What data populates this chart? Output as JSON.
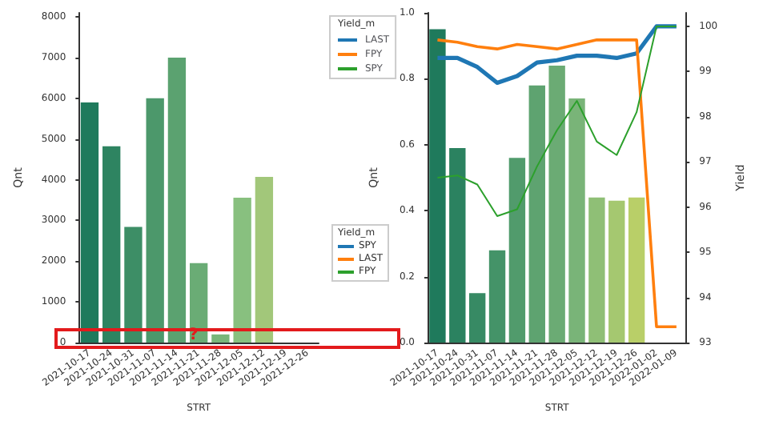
{
  "chart_data": [
    {
      "type": "bar",
      "categories": [
        "2021-10-17",
        "2021-10-24",
        "2021-10-31",
        "2021-11-07",
        "2021-11-14",
        "2021-11-21",
        "2021-11-28",
        "2021-12-05",
        "2021-12-12",
        "2021-12-19",
        "2021-12-26"
      ],
      "values": [
        5900,
        4820,
        2840,
        6000,
        7000,
        1950,
        200,
        3560,
        4070,
        null,
        null
      ],
      "colors": [
        "#1f7a5c",
        "#2e8461",
        "#3d8e66",
        "#4c986b",
        "#5ba270",
        "#6aac75",
        "#79b67a",
        "#88c07f",
        "#a2c77a",
        "#b3cc70",
        "#c0d068"
      ],
      "xlabel": "STRT",
      "ylabel": "Qnt",
      "ylim": [
        0,
        8100
      ],
      "yticks": [
        0,
        1000,
        2000,
        3000,
        4000,
        5000,
        6000,
        7000,
        8000
      ],
      "annotations": [
        "?"
      ]
    },
    {
      "type": "bar",
      "categories": [
        "2021-10-17",
        "2021-10-24",
        "2021-10-31",
        "2021-11-07",
        "2021-11-14",
        "2021-11-21",
        "2021-11-28",
        "2021-12-05",
        "2021-12-12",
        "2021-12-19",
        "2021-12-26",
        "2022-01-02",
        "2022-01-09"
      ],
      "series": [
        {
          "type": "bar",
          "colors": [
            "#1f7a5c",
            "#2b8260",
            "#378a64",
            "#449368",
            "#519b6c",
            "#5ea370",
            "#6bab74",
            "#79b478",
            "#8fbf76",
            "#a5c870",
            "#b9cf68",
            "#c5d462",
            "#d0d95c"
          ],
          "values": [
            0.95,
            0.59,
            0.15,
            0.28,
            0.56,
            0.78,
            0.84,
            0.74,
            0.44,
            0.43,
            0.44,
            null,
            null
          ]
        },
        {
          "type": "line",
          "name": "LAST",
          "axis": "y2",
          "color": "#1f77b4",
          "values": [
            99.3,
            99.3,
            99.1,
            98.75,
            98.9,
            99.2,
            99.25,
            99.35,
            99.35,
            99.3,
            99.4,
            100,
            100
          ]
        },
        {
          "type": "line",
          "name": "FPY",
          "axis": "y2",
          "color": "#ff7f0e",
          "values": [
            99.7,
            99.65,
            99.55,
            99.5,
            99.6,
            99.55,
            99.5,
            99.6,
            99.7,
            99.7,
            99.7,
            93.35,
            93.35
          ]
        },
        {
          "type": "line",
          "name": "SPY",
          "axis": "y2",
          "color": "#2ca02c",
          "values": [
            96.65,
            96.7,
            96.5,
            95.8,
            95.95,
            96.9,
            97.7,
            98.35,
            97.45,
            97.15,
            98.1,
            100,
            100
          ]
        }
      ],
      "xlabel": "STRT",
      "ylabel": "Qnt",
      "y2label": "Yield",
      "legend_title": "Yield_m",
      "legend": "top left",
      "ylim": [
        0,
        1.0
      ],
      "yticks": [
        {
          "value": 0,
          "label": "0.0"
        },
        0.2,
        0.4,
        0.6,
        0.8,
        {
          "value": 1.0,
          "label": "1.0"
        }
      ],
      "y2lim": [
        93,
        100.3
      ],
      "y2ticks": [
        93,
        94,
        95,
        96,
        97,
        98,
        99,
        100
      ],
      "annotations": [
        "Yield_m",
        "SPY",
        "LAST",
        "FPY"
      ]
    }
  ]
}
